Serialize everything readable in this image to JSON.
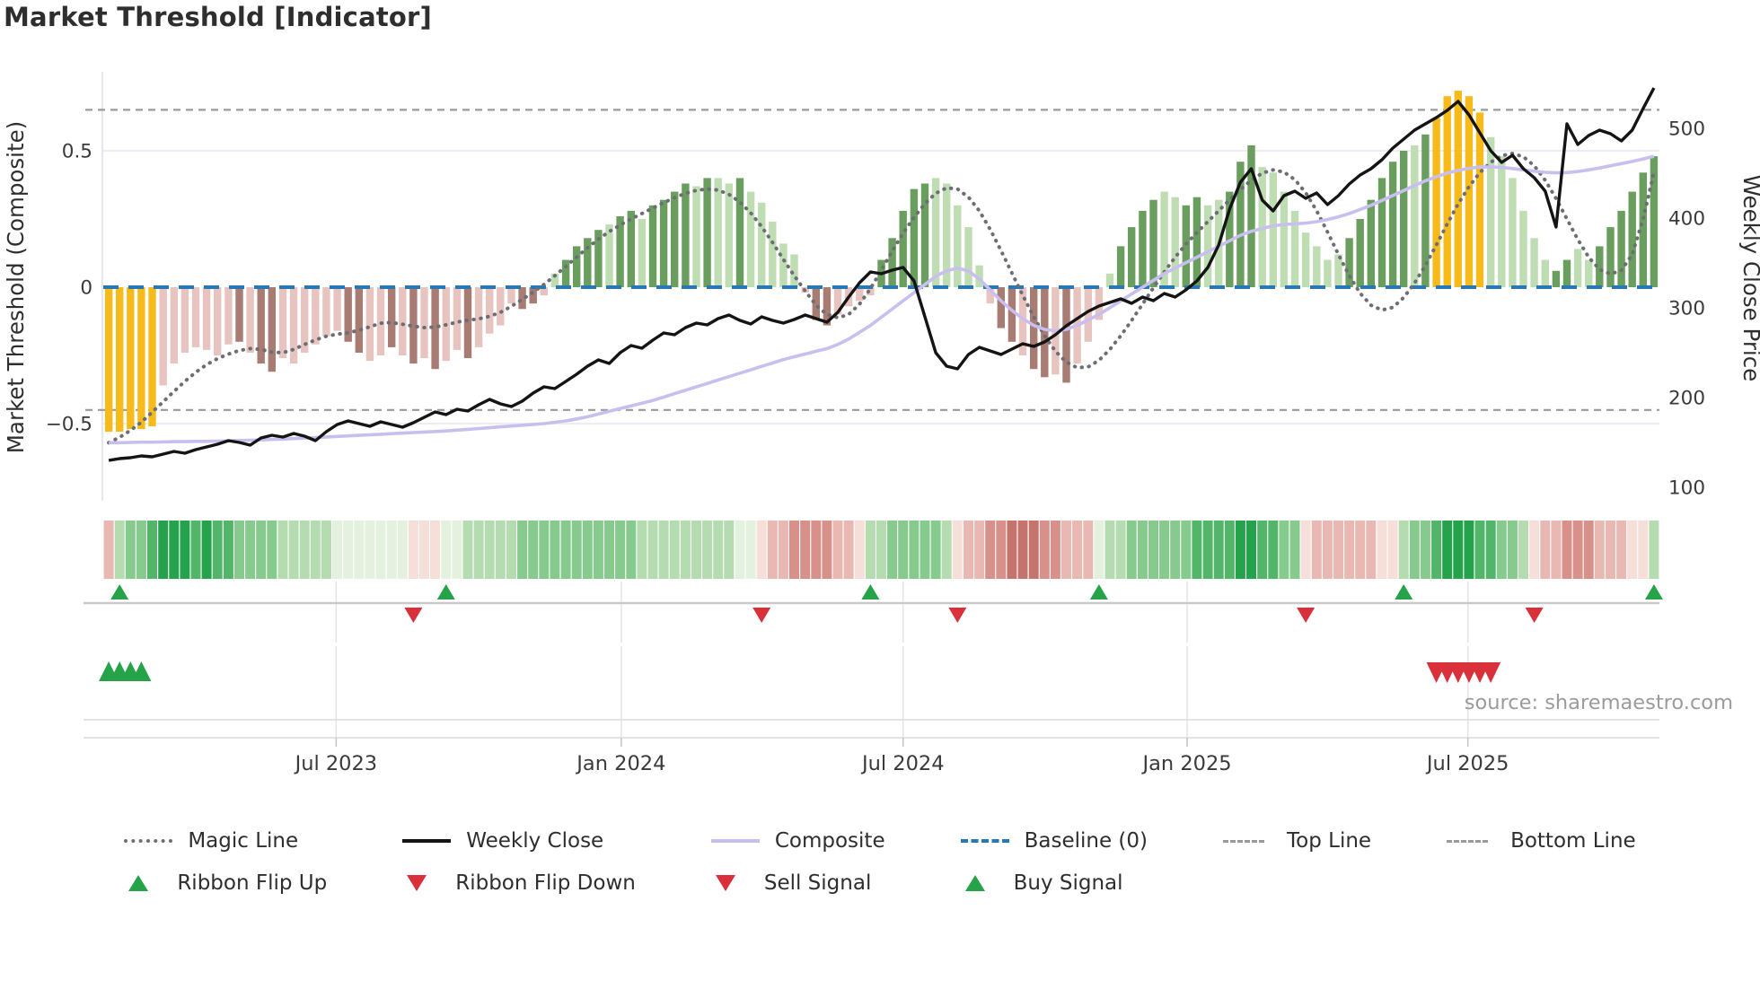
{
  "title": "Market Threshold [Indicator]",
  "source_note": "source: sharemaestro.com",
  "axes": {
    "left_title": "Market Threshold (Composite)",
    "right_title": "Weekly Close Price",
    "left_ticks": [
      {
        "label": "0.5",
        "value": 0.5
      },
      {
        "label": "0",
        "value": 0
      },
      {
        "label": "−0.5",
        "value": -0.5
      }
    ],
    "right_ticks": [
      {
        "label": "500",
        "value": 500
      },
      {
        "label": "400",
        "value": 400
      },
      {
        "label": "300",
        "value": 300
      },
      {
        "label": "200",
        "value": 200
      },
      {
        "label": "100",
        "value": 100
      }
    ],
    "x_ticks": [
      {
        "label": "Jul 2023",
        "week": 21.4
      },
      {
        "label": "Jan 2024",
        "week": 47.6
      },
      {
        "label": "Jul 2024",
        "week": 73.5
      },
      {
        "label": "Jan 2025",
        "week": 99.6
      },
      {
        "label": "Jul 2025",
        "week": 125.4
      }
    ]
  },
  "colors": {
    "bar_dark_green": "#6a9e5f",
    "bar_light_green": "#bfddb2",
    "bar_dark_red": "#a87b73",
    "bar_light_pink": "#e7c4c0",
    "bar_yellow": "#f6bb1b",
    "weekly_close": "#141414",
    "composite": "#c9bfee",
    "magic_line": "#6d6d74",
    "baseline": "#2878b5",
    "top_bottom_line": "#9a9a9a",
    "signal_green": "#26a348",
    "signal_red": "#d9303c",
    "ribbon_g0": "#e3f1de",
    "ribbon_g1": "#b4dcb0",
    "ribbon_g2": "#86ca8d",
    "ribbon_g3": "#52b569",
    "ribbon_g4": "#25a24c",
    "ribbon_r0": "#f6ded9",
    "ribbon_r1": "#e9b8b2",
    "ribbon_r2": "#d7918a",
    "ribbon_r3": "#c5746d",
    "grid": "#ededf3",
    "subgrid": "#e4e4e4",
    "signal_axis": "#c9c9c9",
    "frame": "#dcdcdc",
    "tick_text": "#3a3a3a",
    "source_text": "#9b9b9b"
  },
  "legend": {
    "columns": [
      [
        {
          "label": "Magic Line",
          "swatch": "dotted-gray"
        },
        {
          "label": "Ribbon Flip Up",
          "swatch": "tri-up-green"
        }
      ],
      [
        {
          "label": "Weekly Close",
          "swatch": "solid-black"
        },
        {
          "label": "Ribbon Flip Down",
          "swatch": "tri-down-red"
        }
      ],
      [
        {
          "label": "Composite",
          "swatch": "solid-purple"
        },
        {
          "label": "Sell Signal",
          "swatch": "tri-down-red"
        }
      ],
      [
        {
          "label": "Baseline (0)",
          "swatch": "dashed-blue"
        },
        {
          "label": "Buy Signal",
          "swatch": "tri-up-green"
        }
      ],
      [
        {
          "label": "Top Line",
          "swatch": "dash-gray"
        }
      ],
      [
        {
          "label": "Bottom Line",
          "swatch": "dash-gray"
        }
      ]
    ]
  },
  "chart_data": {
    "type": "mixed-bar-line",
    "x_unit": "weekly, Feb 2023 to Nov 2025",
    "n_weeks": 143,
    "left_axis_range": [
      -0.78,
      0.79
    ],
    "right_axis_range": [
      85,
      563
    ],
    "top_line": 0.65,
    "bottom_line": -0.45,
    "baseline": 0,
    "grid_values": [
      0.5,
      -0.5
    ],
    "threshold_bars": {
      "values": [
        -0.53,
        -0.53,
        -0.52,
        -0.52,
        -0.51,
        -0.36,
        -0.28,
        -0.24,
        -0.22,
        -0.23,
        -0.25,
        -0.21,
        -0.2,
        -0.24,
        -0.28,
        -0.31,
        -0.26,
        -0.28,
        -0.24,
        -0.21,
        -0.18,
        -0.16,
        -0.2,
        -0.24,
        -0.27,
        -0.25,
        -0.22,
        -0.25,
        -0.28,
        -0.26,
        -0.3,
        -0.27,
        -0.23,
        -0.26,
        -0.22,
        -0.17,
        -0.14,
        -0.06,
        -0.08,
        -0.06,
        -0.03,
        0.05,
        0.1,
        0.15,
        0.18,
        0.21,
        0.23,
        0.26,
        0.28,
        0.25,
        0.3,
        0.32,
        0.35,
        0.38,
        0.37,
        0.4,
        0.4,
        0.38,
        0.4,
        0.35,
        0.31,
        0.24,
        0.16,
        0.12,
        -0.02,
        -0.12,
        -0.14,
        -0.1,
        -0.07,
        -0.05,
        -0.03,
        0.1,
        0.18,
        0.28,
        0.36,
        0.38,
        0.4,
        0.38,
        0.3,
        0.22,
        0.08,
        -0.06,
        -0.15,
        -0.2,
        -0.25,
        -0.3,
        -0.33,
        -0.32,
        -0.35,
        -0.28,
        -0.2,
        -0.12,
        0.05,
        0.15,
        0.22,
        0.28,
        0.32,
        0.35,
        0.33,
        0.3,
        0.33,
        0.3,
        0.32,
        0.35,
        0.46,
        0.52,
        0.44,
        0.42,
        0.35,
        0.28,
        0.2,
        0.15,
        0.1,
        0.12,
        0.18,
        0.25,
        0.32,
        0.4,
        0.46,
        0.5,
        0.52,
        0.56,
        0.62,
        0.7,
        0.72,
        0.7,
        0.64,
        0.55,
        0.48,
        0.4,
        0.28,
        0.18,
        0.1,
        0.06,
        0.1,
        0.14,
        0.1,
        0.15,
        0.22,
        0.28,
        0.35,
        0.42,
        0.48
      ],
      "color_classes": [
        "y",
        "y",
        "y",
        "y",
        "y",
        "lp",
        "lp",
        "lp",
        "lp",
        "lp",
        "lp",
        "lp",
        "dr",
        "lp",
        "dr",
        "dr",
        "lp",
        "lp",
        "lp",
        "lp",
        "lp",
        "lp",
        "dr",
        "dr",
        "lp",
        "lp",
        "dr",
        "lp",
        "dr",
        "lp",
        "dr",
        "lp",
        "lp",
        "dr",
        "lp",
        "lp",
        "lp",
        "lp",
        "dr",
        "dr",
        "lp",
        "lg",
        "dg",
        "dg",
        "dg",
        "dg",
        "lg",
        "dg",
        "dg",
        "lg",
        "dg",
        "dg",
        "dg",
        "dg",
        "lg",
        "dg",
        "lg",
        "lg",
        "dg",
        "lg",
        "lg",
        "lg",
        "lg",
        "lg",
        "lp",
        "dr",
        "dr",
        "lp",
        "lp",
        "lp",
        "lp",
        "dg",
        "dg",
        "dg",
        "dg",
        "dg",
        "lg",
        "lg",
        "lg",
        "lg",
        "lg",
        "lp",
        "dr",
        "dr",
        "lp",
        "dr",
        "dr",
        "lp",
        "dr",
        "lp",
        "lp",
        "lp",
        "lg",
        "dg",
        "dg",
        "dg",
        "dg",
        "lg",
        "lg",
        "dg",
        "dg",
        "lg",
        "lg",
        "dg",
        "dg",
        "dg",
        "lg",
        "lg",
        "lg",
        "lg",
        "lg",
        "lg",
        "lg",
        "lg",
        "dg",
        "dg",
        "dg",
        "dg",
        "dg",
        "dg",
        "lg",
        "dg",
        "y",
        "y",
        "y",
        "y",
        "y",
        "lg",
        "lg",
        "lg",
        "lg",
        "lg",
        "lg",
        "dg",
        "dg",
        "lg",
        "lg",
        "dg",
        "dg",
        "dg",
        "dg",
        "dg",
        "dg"
      ]
    },
    "weekly_close": [
      130,
      132,
      133,
      135,
      134,
      137,
      140,
      138,
      142,
      145,
      148,
      152,
      150,
      147,
      155,
      158,
      156,
      160,
      157,
      152,
      162,
      170,
      174,
      171,
      168,
      173,
      170,
      167,
      172,
      178,
      184,
      181,
      187,
      185,
      192,
      198,
      193,
      190,
      196,
      205,
      212,
      210,
      218,
      226,
      235,
      242,
      238,
      250,
      258,
      255,
      264,
      272,
      270,
      278,
      283,
      281,
      288,
      292,
      286,
      282,
      290,
      286,
      283,
      287,
      292,
      288,
      284,
      295,
      312,
      328,
      340,
      338,
      342,
      345,
      330,
      290,
      250,
      235,
      232,
      248,
      256,
      252,
      248,
      254,
      260,
      257,
      262,
      270,
      280,
      288,
      296,
      302,
      306,
      310,
      305,
      312,
      308,
      316,
      312,
      320,
      330,
      345,
      370,
      410,
      440,
      455,
      420,
      408,
      425,
      430,
      422,
      428,
      415,
      425,
      438,
      448,
      455,
      465,
      478,
      488,
      498,
      505,
      512,
      520,
      530,
      515,
      495,
      475,
      462,
      470,
      455,
      445,
      430,
      390,
      505,
      482,
      492,
      498,
      494,
      486,
      498,
      522,
      545
    ],
    "composite": [
      -0.57,
      -0.57,
      -0.569,
      -0.568,
      -0.568,
      -0.567,
      -0.566,
      -0.566,
      -0.565,
      -0.565,
      -0.564,
      -0.563,
      -0.562,
      -0.561,
      -0.56,
      -0.558,
      -0.557,
      -0.555,
      -0.553,
      -0.551,
      -0.549,
      -0.547,
      -0.545,
      -0.543,
      -0.541,
      -0.539,
      -0.537,
      -0.535,
      -0.533,
      -0.531,
      -0.529,
      -0.527,
      -0.524,
      -0.521,
      -0.518,
      -0.515,
      -0.512,
      -0.509,
      -0.506,
      -0.503,
      -0.5,
      -0.495,
      -0.49,
      -0.483,
      -0.475,
      -0.465,
      -0.455,
      -0.445,
      -0.435,
      -0.425,
      -0.415,
      -0.403,
      -0.39,
      -0.378,
      -0.365,
      -0.353,
      -0.34,
      -0.328,
      -0.315,
      -0.303,
      -0.29,
      -0.278,
      -0.265,
      -0.255,
      -0.245,
      -0.235,
      -0.225,
      -0.21,
      -0.19,
      -0.165,
      -0.14,
      -0.11,
      -0.08,
      -0.05,
      -0.02,
      0.01,
      0.04,
      0.06,
      0.07,
      0.06,
      0.03,
      -0.01,
      -0.05,
      -0.085,
      -0.115,
      -0.14,
      -0.155,
      -0.16,
      -0.155,
      -0.14,
      -0.12,
      -0.1,
      -0.075,
      -0.05,
      -0.025,
      0.0,
      0.025,
      0.05,
      0.07,
      0.09,
      0.11,
      0.13,
      0.15,
      0.17,
      0.19,
      0.205,
      0.215,
      0.225,
      0.23,
      0.232,
      0.235,
      0.24,
      0.248,
      0.258,
      0.27,
      0.285,
      0.3,
      0.318,
      0.336,
      0.354,
      0.372,
      0.39,
      0.405,
      0.418,
      0.428,
      0.436,
      0.44,
      0.441,
      0.439,
      0.435,
      0.43,
      0.425,
      0.421,
      0.419,
      0.42,
      0.424,
      0.43,
      0.437,
      0.445,
      0.453,
      0.461,
      0.47,
      0.48
    ],
    "magic_line": [
      -0.57,
      -0.55,
      -0.525,
      -0.495,
      -0.458,
      -0.42,
      -0.382,
      -0.345,
      -0.312,
      -0.284,
      -0.262,
      -0.245,
      -0.232,
      -0.225,
      -0.228,
      -0.238,
      -0.24,
      -0.228,
      -0.21,
      -0.193,
      -0.18,
      -0.172,
      -0.167,
      -0.158,
      -0.145,
      -0.132,
      -0.13,
      -0.136,
      -0.143,
      -0.148,
      -0.146,
      -0.138,
      -0.128,
      -0.121,
      -0.116,
      -0.107,
      -0.092,
      -0.07,
      -0.045,
      -0.018,
      0.01,
      0.042,
      0.076,
      0.11,
      0.144,
      0.176,
      0.204,
      0.228,
      0.25,
      0.27,
      0.29,
      0.31,
      0.328,
      0.344,
      0.355,
      0.36,
      0.356,
      0.34,
      0.312,
      0.272,
      0.222,
      0.164,
      0.102,
      0.042,
      -0.014,
      -0.066,
      -0.1,
      -0.112,
      -0.1,
      -0.062,
      -0.005,
      0.062,
      0.132,
      0.198,
      0.256,
      0.306,
      0.344,
      0.364,
      0.36,
      0.33,
      0.28,
      0.212,
      0.134,
      0.052,
      -0.03,
      -0.108,
      -0.178,
      -0.235,
      -0.275,
      -0.295,
      -0.292,
      -0.268,
      -0.228,
      -0.178,
      -0.122,
      -0.062,
      -0.002,
      0.056,
      0.11,
      0.158,
      0.2,
      0.24,
      0.28,
      0.32,
      0.358,
      0.392,
      0.418,
      0.43,
      0.422,
      0.394,
      0.346,
      0.28,
      0.202,
      0.12,
      0.042,
      -0.022,
      -0.066,
      -0.084,
      -0.074,
      -0.038,
      0.015,
      0.08,
      0.155,
      0.232,
      0.305,
      0.368,
      0.42,
      0.458,
      0.482,
      0.49,
      0.478,
      0.445,
      0.392,
      0.325,
      0.25,
      0.175,
      0.11,
      0.065,
      0.048,
      0.062,
      0.12,
      0.25,
      0.42
    ],
    "ribbon": [
      "r1",
      "g1",
      "g2",
      "g2",
      "g3",
      "g4",
      "g4",
      "g4",
      "g3",
      "g4",
      "g3",
      "g3",
      "g2",
      "g2",
      "g2",
      "g2",
      "g1",
      "g1",
      "g1",
      "g1",
      "g1",
      "g0",
      "g0",
      "g0",
      "g0",
      "g0",
      "g0",
      "g0",
      "r0",
      "r0",
      "r0",
      "g0",
      "g0",
      "g1",
      "g1",
      "g1",
      "g1",
      "g1",
      "g2",
      "g2",
      "g2",
      "g2",
      "g2",
      "g2",
      "g2",
      "g2",
      "g2",
      "g2",
      "g2",
      "g1",
      "g1",
      "g1",
      "g1",
      "g1",
      "g1",
      "g1",
      "g1",
      "g1",
      "g0",
      "g0",
      "r0",
      "r1",
      "r1",
      "r2",
      "r2",
      "r2",
      "r2",
      "r1",
      "r1",
      "r0",
      "g1",
      "g1",
      "g2",
      "g2",
      "g2",
      "g2",
      "g2",
      "g1",
      "r0",
      "r1",
      "r1",
      "r2",
      "r2",
      "r3",
      "r3",
      "r3",
      "r2",
      "r2",
      "r1",
      "r1",
      "r1",
      "g0",
      "g1",
      "g1",
      "g2",
      "g2",
      "g2",
      "g2",
      "g2",
      "g2",
      "g3",
      "g3",
      "g3",
      "g3",
      "g4",
      "g4",
      "g3",
      "g3",
      "g2",
      "g2",
      "r0",
      "r1",
      "r1",
      "r1",
      "r1",
      "r1",
      "r1",
      "r0",
      "r0",
      "g1",
      "g2",
      "g2",
      "g3",
      "g4",
      "g4",
      "g4",
      "g3",
      "g3",
      "g2",
      "g2",
      "g1",
      "r0",
      "r1",
      "r1",
      "r2",
      "r2",
      "r2",
      "r1",
      "r1",
      "r1",
      "r0",
      "r0",
      "g1"
    ],
    "signals": {
      "ribbon_flip_up_weeks": [
        1,
        31,
        70,
        91,
        119,
        142
      ],
      "ribbon_flip_down_weeks": [
        28,
        60,
        78,
        110,
        131
      ],
      "buy_signal_weeks": [
        0,
        1,
        2,
        3
      ],
      "sell_signal_weeks": [
        122,
        123,
        124,
        125,
        126,
        127
      ]
    }
  }
}
